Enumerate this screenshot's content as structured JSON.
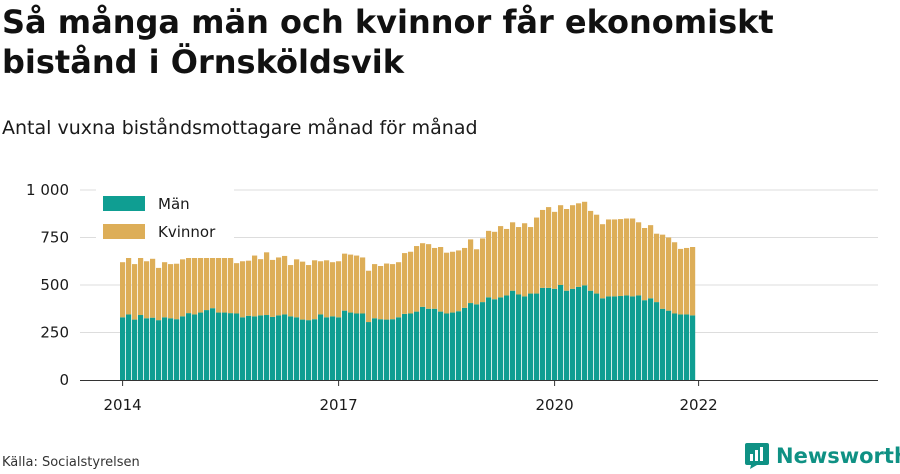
{
  "title": "Så många män och kvinnor får ekonomiskt bistånd i Örnsköldsvik",
  "subtitle": "Antal vuxna biståndsmottagare månad för månad",
  "source": "Källa: Socialstyrelsen",
  "brand": {
    "name": "Newsworthy",
    "icon": "newsworthy-logo-icon"
  },
  "colors": {
    "men": "#0f9e92",
    "women": "#ddae58",
    "grid": "#dddddd",
    "axis": "#333333"
  },
  "chart_data": {
    "type": "bar",
    "stacked": true,
    "title": "Så många män och kvinnor får ekonomiskt bistånd i Örnsköldsvik",
    "subtitle": "Antal vuxna biståndsmottagare månad för månad",
    "start": "2014-01",
    "xtick_labels": [
      "2014",
      "2017",
      "2020",
      "2022"
    ],
    "ytick_labels": [
      "0",
      "250",
      "500",
      "750",
      "1 000"
    ],
    "ylim": [
      0,
      1000
    ],
    "grid": true,
    "legend_position": "top-left",
    "series": [
      {
        "name": "Män",
        "color": "#0f9e92",
        "values": [
          330,
          345,
          318,
          342,
          325,
          328,
          315,
          330,
          325,
          320,
          335,
          352,
          345,
          355,
          368,
          378,
          355,
          355,
          352,
          350,
          330,
          338,
          335,
          340,
          342,
          332,
          340,
          345,
          335,
          330,
          318,
          315,
          320,
          345,
          330,
          335,
          330,
          365,
          355,
          350,
          350,
          305,
          325,
          320,
          318,
          320,
          330,
          348,
          350,
          360,
          385,
          375,
          375,
          360,
          350,
          355,
          362,
          380,
          405,
          398,
          410,
          435,
          425,
          435,
          445,
          470,
          450,
          440,
          455,
          455,
          485,
          485,
          480,
          500,
          470,
          480,
          490,
          498,
          470,
          455,
          430,
          440,
          440,
          442,
          445,
          440,
          445,
          420,
          430,
          410,
          375,
          365,
          350,
          345,
          345,
          340
        ]
      },
      {
        "name": "Kvinnor",
        "color": "#ddae58",
        "values": [
          290,
          320,
          292,
          320,
          300,
          310,
          275,
          290,
          285,
          292,
          300,
          310,
          302,
          310,
          322,
          300,
          320,
          305,
          305,
          265,
          295,
          290,
          320,
          296,
          330,
          300,
          305,
          308,
          270,
          305,
          305,
          290,
          310,
          280,
          300,
          285,
          295,
          300,
          305,
          305,
          295,
          270,
          285,
          280,
          295,
          290,
          290,
          320,
          325,
          345,
          335,
          340,
          320,
          340,
          320,
          320,
          320,
          315,
          335,
          290,
          335,
          350,
          355,
          375,
          350,
          360,
          355,
          385,
          350,
          400,
          410,
          425,
          405,
          420,
          430,
          440,
          440,
          440,
          420,
          415,
          390,
          405,
          405,
          405,
          405,
          410,
          385,
          380,
          385,
          360,
          390,
          385,
          375,
          345,
          350,
          360
        ]
      }
    ]
  }
}
